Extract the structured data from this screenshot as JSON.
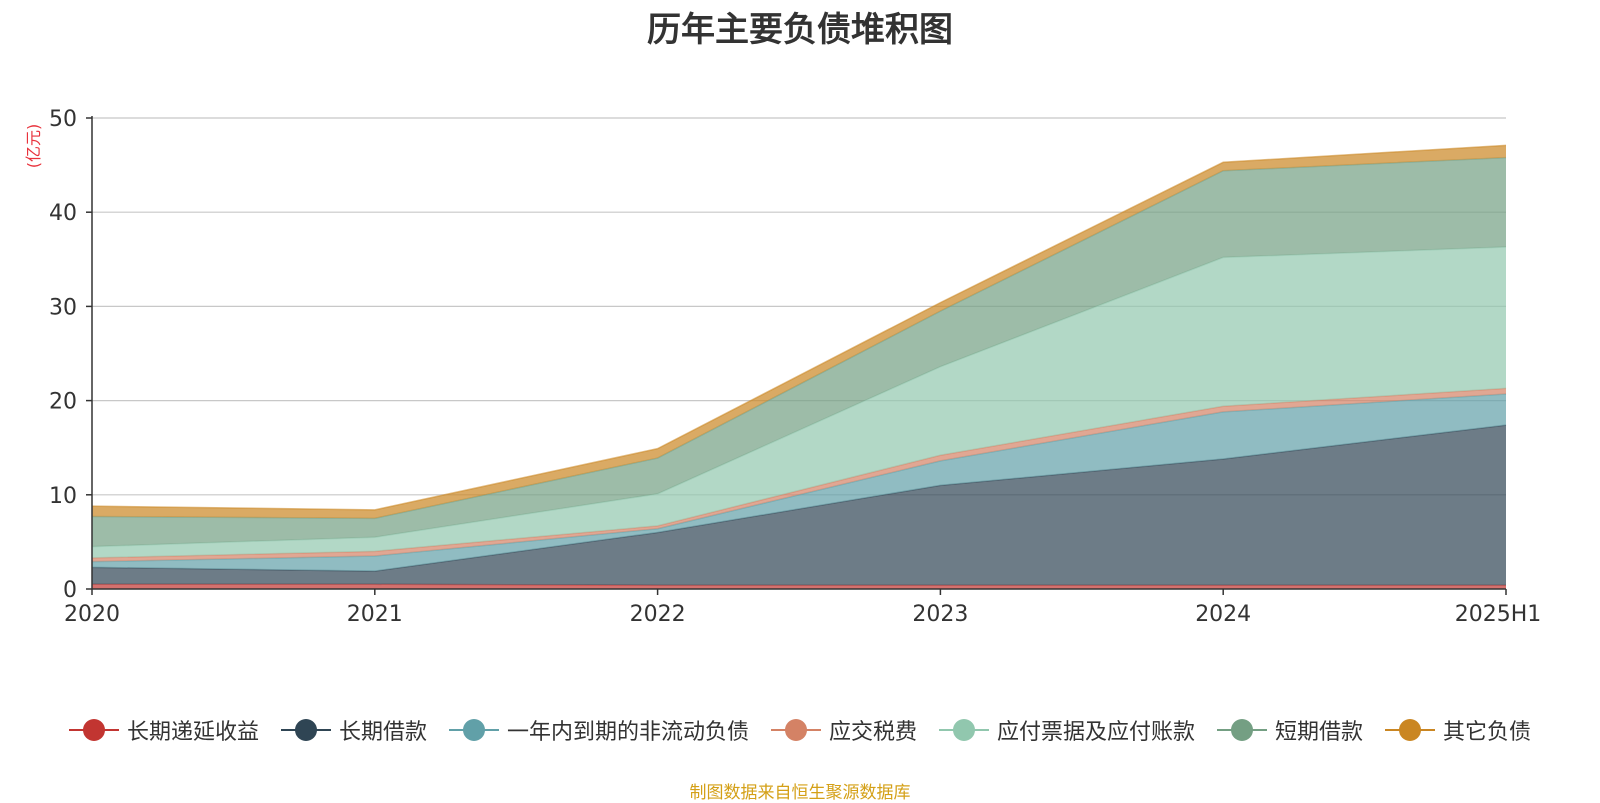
{
  "chart_data": {
    "type": "area",
    "stacked": true,
    "title": "历年主要负债堆积图",
    "ylabel": "(亿元)",
    "xlabel": "",
    "categories": [
      "2020",
      "2021",
      "2022",
      "2023",
      "2024",
      "2025H1"
    ],
    "ylim": [
      0,
      50
    ],
    "yticks": [
      0,
      10,
      20,
      30,
      40,
      50
    ],
    "grid": true,
    "legend_position": "bottom",
    "series": [
      {
        "name": "长期递延收益",
        "color": "#c23531",
        "values": [
          0.5,
          0.5,
          0.4,
          0.4,
          0.4,
          0.4
        ]
      },
      {
        "name": "长期借款",
        "color": "#2f4554",
        "values": [
          1.8,
          1.4,
          5.6,
          10.6,
          13.4,
          17.0
        ]
      },
      {
        "name": "一年内到期的非流动负债",
        "color": "#61a0a8",
        "values": [
          0.6,
          1.6,
          0.4,
          2.6,
          5.0,
          3.3
        ]
      },
      {
        "name": "应交税费",
        "color": "#d48265",
        "values": [
          0.4,
          0.5,
          0.3,
          0.6,
          0.6,
          0.6
        ]
      },
      {
        "name": "应付票据及应付账款",
        "color": "#91c7ae",
        "values": [
          1.2,
          1.5,
          3.4,
          9.4,
          15.8,
          15.0
        ]
      },
      {
        "name": "短期借款",
        "color": "#749f83",
        "values": [
          3.2,
          2.0,
          3.8,
          5.9,
          9.2,
          9.5
        ]
      },
      {
        "name": "其它负债",
        "color": "#ca8622",
        "values": [
          1.1,
          0.9,
          1.0,
          0.9,
          0.9,
          1.3
        ]
      }
    ]
  },
  "source_note": "制图数据来自恒生聚源数据库"
}
